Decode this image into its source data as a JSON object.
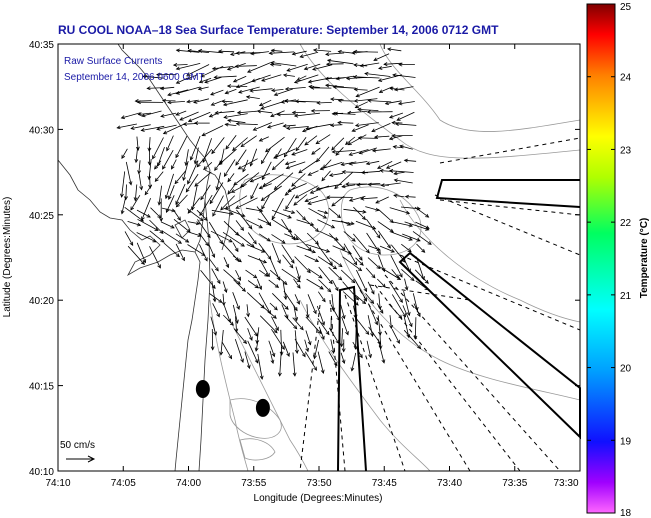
{
  "chart_data": {
    "type": "scatter",
    "title": "RU COOL  NOAA–18  Sea Surface Temperature:  September 14, 2006 0712 GMT",
    "legend_title": "Raw Surface Currents",
    "legend_time": "September 14, 2006 0600 GMT",
    "xlabel": "Longitude (Degrees:Minutes)",
    "ylabel": "Latitude (Degrees:Minutes)",
    "x_ticks": [
      "74:10",
      "74:05",
      "74:00",
      "73:55",
      "73:50",
      "73:45",
      "73:40",
      "73:35",
      "73:30"
    ],
    "y_ticks": [
      "40:10",
      "40:15",
      "40:20",
      "40:25",
      "40:30",
      "40:35"
    ],
    "xlim_deg_west": [
      74.1667,
      73.5
    ],
    "ylim_deg_north": [
      40.1667,
      40.5833
    ],
    "scale_arrow": {
      "label": "50 cm/s",
      "speed_cms": 50
    },
    "colorbar": {
      "label": "Temperature (°C)",
      "ticks": [
        "18",
        "19",
        "20",
        "21",
        "22",
        "23",
        "24",
        "25"
      ],
      "range": [
        18,
        25
      ]
    },
    "markers": [
      {
        "lon_deg_west": 73.9817,
        "lat_deg_north": 40.2467
      },
      {
        "lon_deg_west": 73.905,
        "lat_deg_north": 40.2283
      }
    ],
    "current_field_region": {
      "lon_deg_west": [
        74.125,
        73.7
      ],
      "lat_deg_north": [
        40.28,
        40.575
      ]
    }
  }
}
